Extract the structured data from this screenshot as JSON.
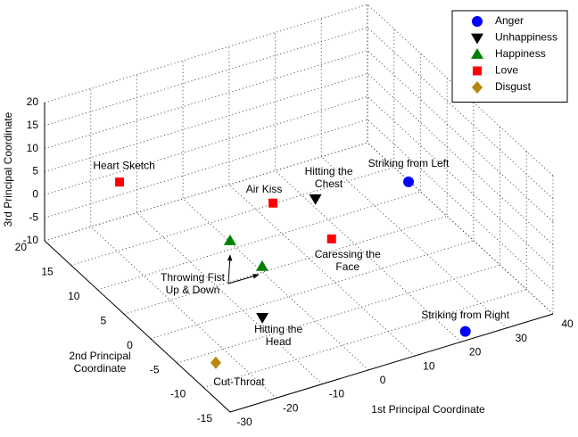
{
  "chart_data": {
    "type": "scatter3d",
    "xlabel": "1st Principal Coordinate",
    "ylabel": [
      "2nd Principal",
      "Coordinate"
    ],
    "zlabel": "3rd Principal Coordinate",
    "xlim": [
      -30,
      40
    ],
    "xticks": [
      -30,
      -20,
      -10,
      0,
      10,
      20,
      30,
      40
    ],
    "ylim": [
      -15,
      20
    ],
    "yticks": [
      -15,
      -10,
      -5,
      0,
      5,
      10,
      15,
      20
    ],
    "zlim": [
      -10,
      20
    ],
    "zticks": [
      -10,
      -5,
      0,
      5,
      10,
      15,
      20
    ],
    "grid": true,
    "legend": "top-right",
    "series": [
      {
        "name": "Anger",
        "color": "#0000ff",
        "marker": "circle",
        "x": [
          23.5,
          22.6
        ],
        "y": [
          -2.1,
          -13.6
        ],
        "z": [
          10,
          -10
        ],
        "labels": [
          [
            "Striking from Left"
          ],
          [
            "Striking from Right"
          ]
        ]
      },
      {
        "name": "Unhappiness",
        "color": "#000000",
        "marker": "triangle-down",
        "x": [
          9.4,
          -12.1
        ],
        "y": [
          3.2,
          -5.5
        ],
        "z": [
          5,
          -5
        ],
        "labels": [
          [
            "Hitting the",
            "Chest"
          ],
          [
            "Hitting the",
            "Head"
          ]
        ]
      },
      {
        "name": "Happiness",
        "color": "#008000",
        "marker": "triangle-up",
        "x": [
          -7.9,
          -7.2
        ],
        "y": [
          4.25,
          -1.2
        ],
        "z": [
          0,
          0
        ]
      },
      {
        "name": "Love",
        "color": "#ff0000",
        "marker": "square",
        "x": [
          -19.6,
          1.7,
          9.0
        ],
        "y": [
          14.9,
          4.5,
          -0.2
        ],
        "z": [
          5,
          5,
          0
        ],
        "labels": [
          [
            "Heart Sketch"
          ],
          [
            "Air Kiss"
          ],
          [
            "Caressing the",
            "Face"
          ]
        ]
      },
      {
        "name": "Disgust",
        "color": "#b8860b",
        "marker": "diamond",
        "x": [
          -27.7
        ],
        "y": [
          -10.3
        ],
        "z": [
          -5
        ],
        "labels": [
          [
            "Cut-Throat"
          ]
        ]
      }
    ],
    "annotations": [
      {
        "text": [
          "Throwing Fist",
          "Up & Down"
        ]
      }
    ]
  }
}
